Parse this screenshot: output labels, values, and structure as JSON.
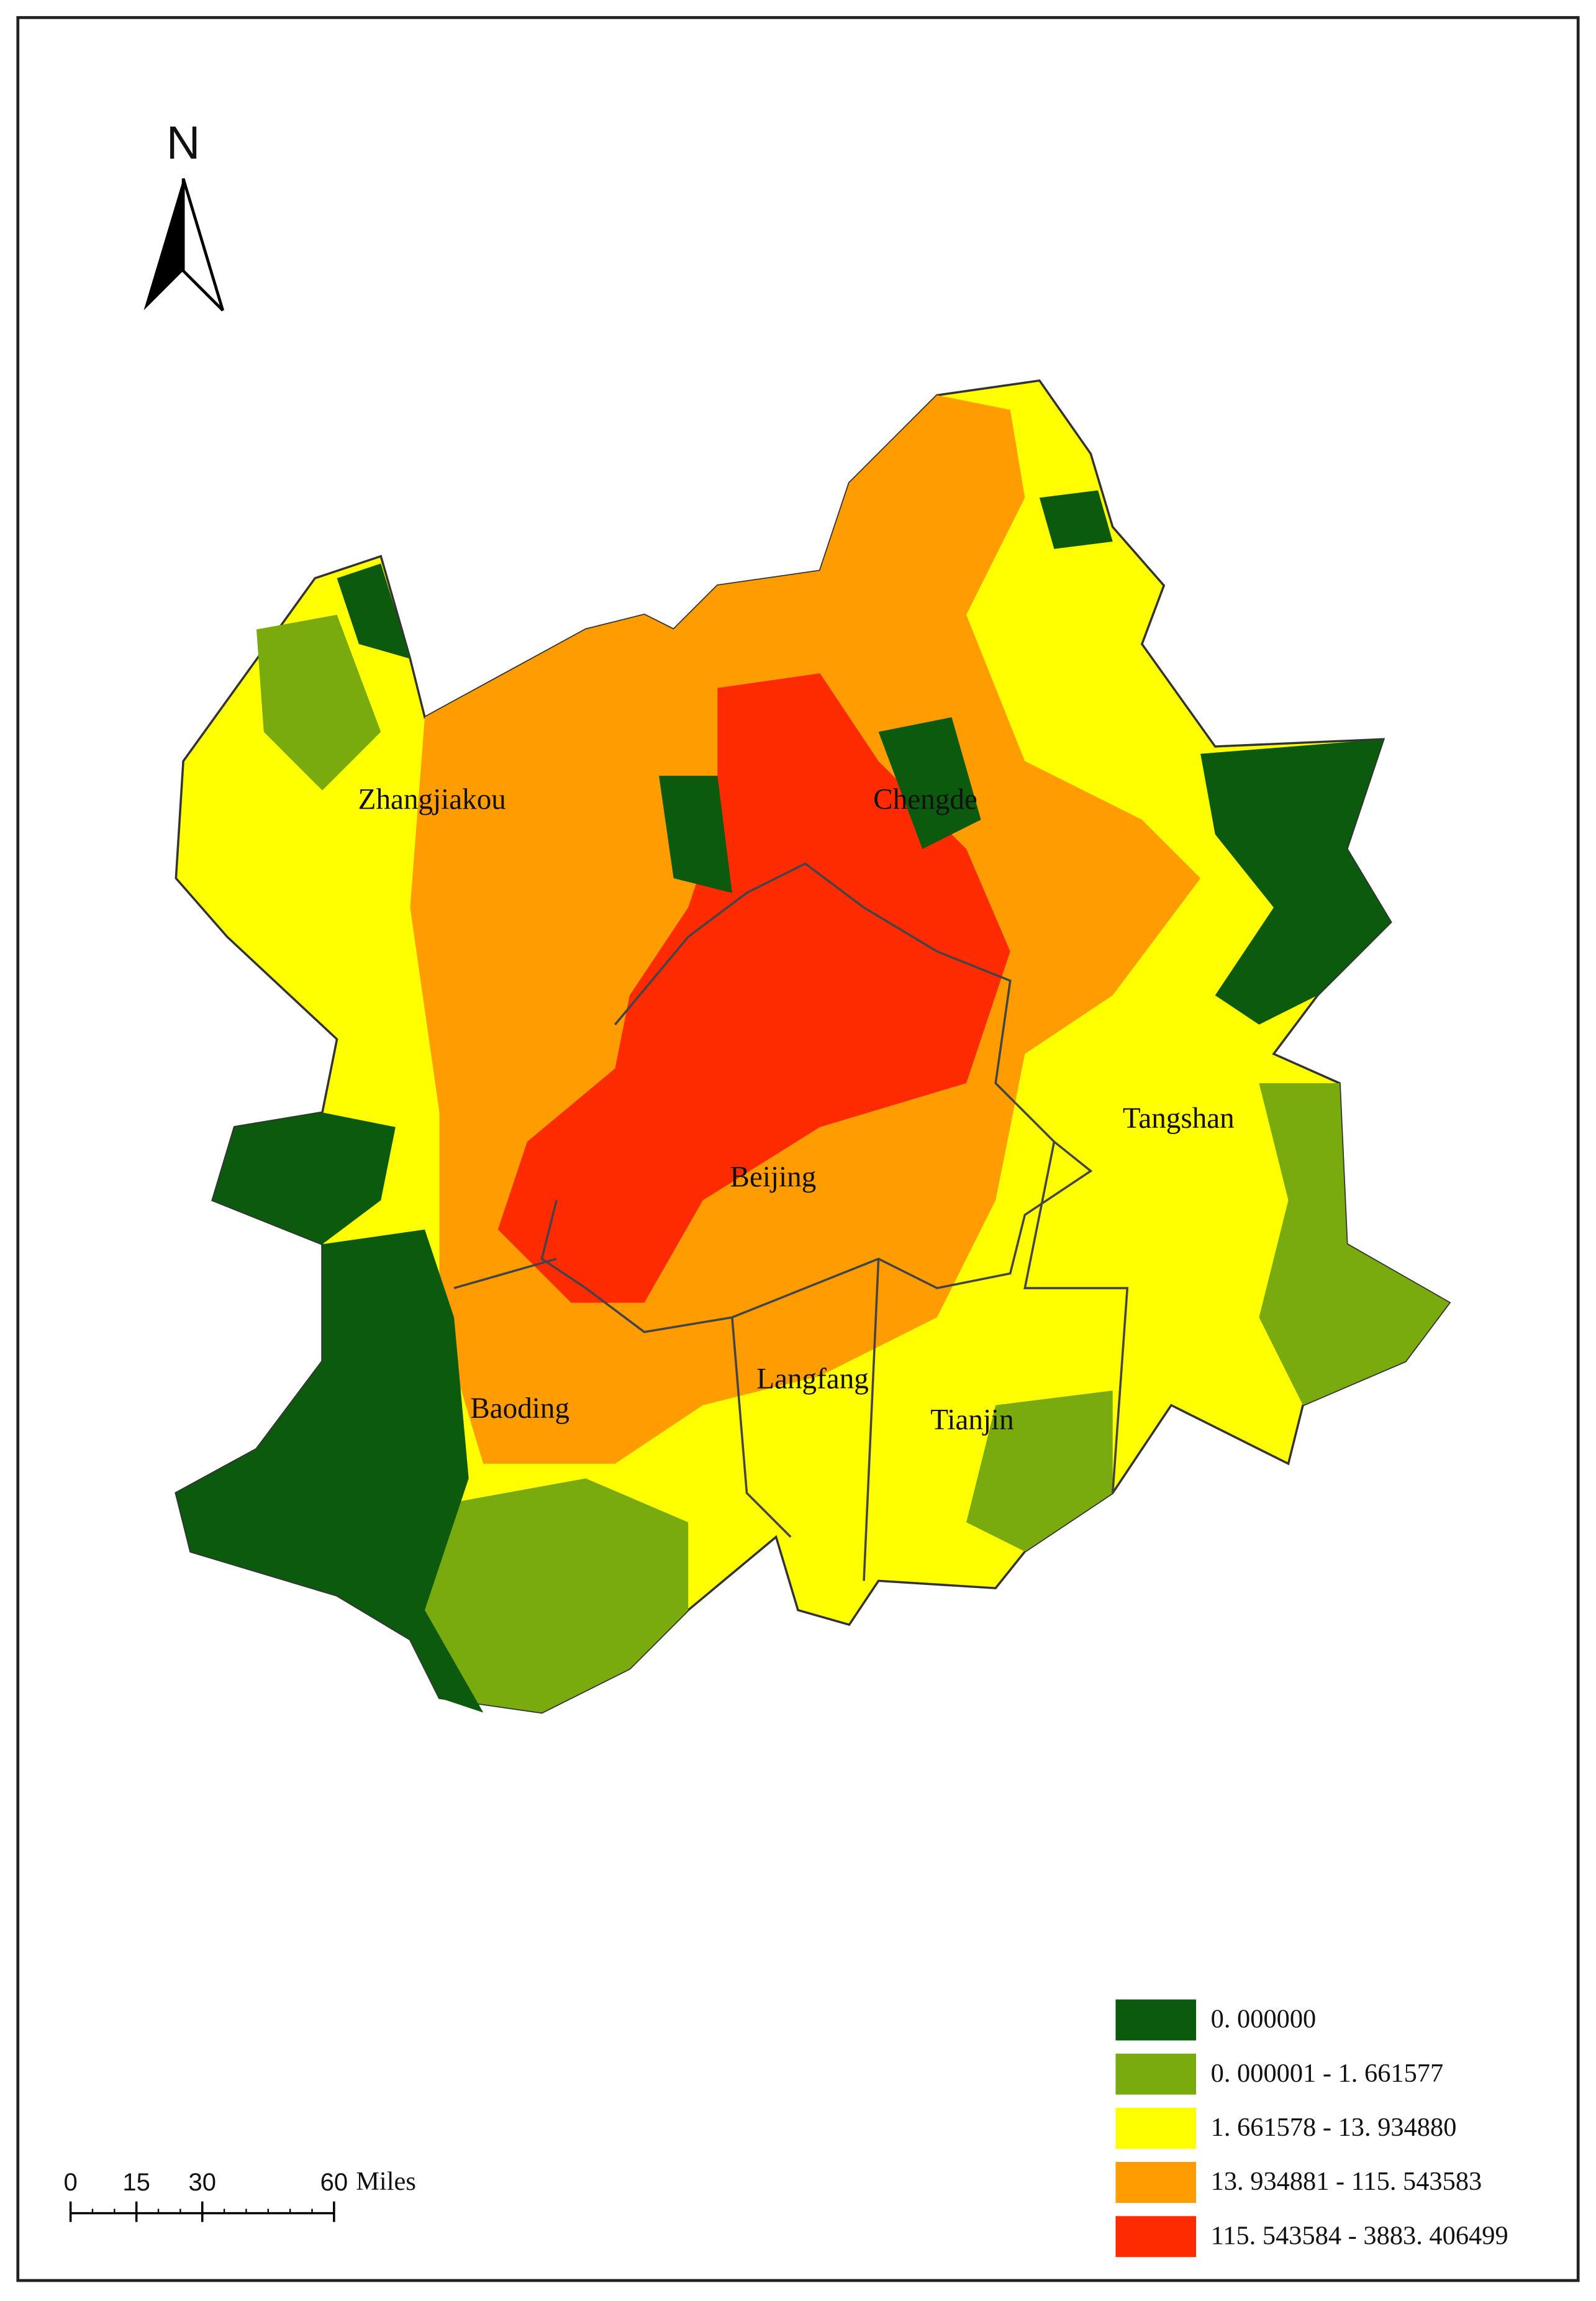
{
  "north": "N",
  "cities": [
    "Zhangjiakou",
    "Chengde",
    "Beijing",
    "Tangshan",
    "Langfang",
    "Baoding",
    "Tianjin"
  ],
  "legend": [
    {
      "label": "0. 000000",
      "color": "#0b5a0e"
    },
    {
      "label": "0. 000001 - 1. 661577",
      "color": "#7aab0e"
    },
    {
      "label": "1. 661578 - 13. 934880",
      "color": "#ffff00"
    },
    {
      "label": "13. 934881 - 115. 543583",
      "color": "#ff9c00"
    },
    {
      "label": "115. 543584 - 3883. 406499",
      "color": "#ff2b00"
    }
  ],
  "scale_bar": {
    "ticks": [
      0,
      15,
      30,
      60
    ],
    "unit": "Miles"
  }
}
